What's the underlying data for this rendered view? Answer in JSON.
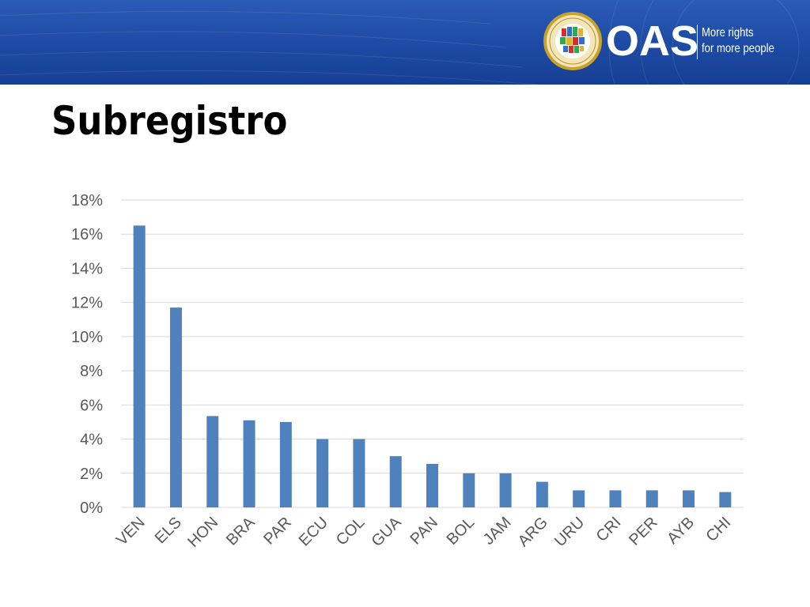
{
  "header": {
    "logo_text": "OAS",
    "tagline_line1": "More rights",
    "tagline_line2": "for more people",
    "seal_icon": "oas-seal-icon"
  },
  "slide": {
    "title": "Subregistro"
  },
  "colors": {
    "banner": "#1d4aa3",
    "bar": "#4f81bd",
    "gridline": "#d9d9d9",
    "axis_text": "#595959"
  },
  "chart_data": {
    "type": "bar",
    "title": "",
    "xlabel": "",
    "ylabel": "",
    "categories": [
      "VEN",
      "ELS",
      "HON",
      "BRA",
      "PAR",
      "ECU",
      "COL",
      "GUA",
      "PAN",
      "BOL",
      "JAM",
      "ARG",
      "URU",
      "CRI",
      "PER",
      "AYB",
      "CHI"
    ],
    "values": [
      16.5,
      11.7,
      5.35,
      5.1,
      5.0,
      4.0,
      4.0,
      3.0,
      2.55,
      2.0,
      2.0,
      1.5,
      1.0,
      1.0,
      1.0,
      1.0,
      0.9
    ],
    "unit": "%",
    "ylim": [
      0,
      18
    ],
    "yticks": [
      "0%",
      "2%",
      "4%",
      "6%",
      "8%",
      "10%",
      "12%",
      "14%",
      "16%",
      "18%"
    ],
    "grid": true,
    "legend": "none"
  }
}
